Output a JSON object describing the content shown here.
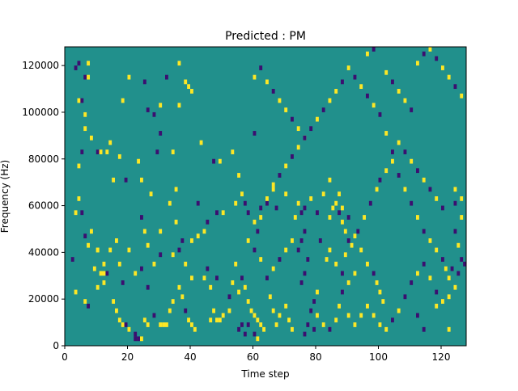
{
  "chart_data": {
    "type": "heatmap",
    "title": "Predicted : PM",
    "xlabel": "Time step",
    "ylabel": "Frequency (Hz)",
    "xlim": [
      0,
      128
    ],
    "ylim": [
      0,
      128000
    ],
    "x_ticks": [
      0,
      20,
      40,
      60,
      80,
      100,
      120
    ],
    "y_ticks": [
      0,
      20000,
      40000,
      60000,
      80000,
      100000,
      120000
    ],
    "grid": false,
    "value_levels": [
      -1,
      0,
      1
    ],
    "colors": {
      "low": "#3b0f70",
      "neutral": "#21908c",
      "high": "#fde725"
    },
    "cell_size": [
      1,
      2000
    ],
    "cells": [
      [
        3,
        118000,
        -1
      ],
      [
        4,
        120000,
        -1
      ],
      [
        7,
        120000,
        1
      ],
      [
        6,
        114000,
        -1
      ],
      [
        7,
        114000,
        1
      ],
      [
        4,
        104000,
        1
      ],
      [
        5,
        104000,
        -1
      ],
      [
        6,
        98000,
        1
      ],
      [
        6,
        92000,
        1
      ],
      [
        5,
        82000,
        -1
      ],
      [
        4,
        76000,
        1
      ],
      [
        8,
        88000,
        1
      ],
      [
        10,
        82000,
        -1
      ],
      [
        11,
        82000,
        1
      ],
      [
        13,
        82000,
        1
      ],
      [
        14,
        86000,
        1
      ],
      [
        17,
        80000,
        1
      ],
      [
        15,
        70000,
        1
      ],
      [
        19,
        70000,
        -1
      ],
      [
        24,
        70000,
        1
      ],
      [
        18,
        104000,
        1
      ],
      [
        20,
        114000,
        1
      ],
      [
        25,
        112000,
        -1
      ],
      [
        26,
        100000,
        -1
      ],
      [
        30,
        102000,
        1
      ],
      [
        32,
        114000,
        -1
      ],
      [
        36,
        120000,
        1
      ],
      [
        36,
        102000,
        1
      ],
      [
        38,
        112000,
        1
      ],
      [
        39,
        110000,
        1
      ],
      [
        40,
        108000,
        1
      ],
      [
        28,
        98000,
        -1
      ],
      [
        30,
        90000,
        -1
      ],
      [
        23,
        78000,
        1
      ],
      [
        29,
        82000,
        -1
      ],
      [
        34,
        82000,
        1
      ],
      [
        35,
        66000,
        1
      ],
      [
        33,
        60000,
        1
      ],
      [
        27,
        64000,
        1
      ],
      [
        42,
        60000,
        -1
      ],
      [
        43,
        86000,
        1
      ],
      [
        47,
        78000,
        -1
      ],
      [
        49,
        78000,
        1
      ],
      [
        53,
        82000,
        1
      ],
      [
        60,
        90000,
        -1
      ],
      [
        55,
        72000,
        1
      ],
      [
        56,
        64000,
        1
      ],
      [
        54,
        60000,
        1
      ],
      [
        50,
        56000,
        1
      ],
      [
        48,
        56000,
        -1
      ],
      [
        45,
        52000,
        -1
      ],
      [
        44,
        48000,
        1
      ],
      [
        42,
        46000,
        1
      ],
      [
        40,
        44000,
        1
      ],
      [
        37,
        44000,
        -1
      ],
      [
        35,
        52000,
        1
      ],
      [
        30,
        48000,
        1
      ],
      [
        24,
        54000,
        -1
      ],
      [
        25,
        48000,
        1
      ],
      [
        26,
        42000,
        1
      ],
      [
        20,
        40000,
        1
      ],
      [
        16,
        44000,
        1
      ],
      [
        14,
        40000,
        1
      ],
      [
        17,
        34000,
        1
      ],
      [
        13,
        30000,
        -1
      ],
      [
        11,
        30000,
        1
      ],
      [
        12,
        30000,
        1
      ],
      [
        9,
        32000,
        1
      ],
      [
        10,
        40000,
        1
      ],
      [
        8,
        48000,
        1
      ],
      [
        7,
        42000,
        1
      ],
      [
        6,
        46000,
        -1
      ],
      [
        5,
        56000,
        -1
      ],
      [
        3,
        56000,
        1
      ],
      [
        4,
        62000,
        1
      ],
      [
        2,
        36000,
        -1
      ],
      [
        3,
        22000,
        1
      ],
      [
        6,
        18000,
        1
      ],
      [
        7,
        16000,
        -1
      ],
      [
        10,
        24000,
        1
      ],
      [
        12,
        26000,
        1
      ],
      [
        15,
        18000,
        1
      ],
      [
        16,
        14000,
        1
      ],
      [
        17,
        10000,
        1
      ],
      [
        18,
        8000,
        1
      ],
      [
        19,
        8000,
        -1
      ],
      [
        20,
        6000,
        1
      ],
      [
        22,
        4000,
        -1
      ],
      [
        23,
        2000,
        -1
      ],
      [
        22,
        2000,
        -1
      ],
      [
        24,
        2000,
        1
      ],
      [
        26,
        8000,
        1
      ],
      [
        25,
        10000,
        1
      ],
      [
        28,
        12000,
        -1
      ],
      [
        30,
        8000,
        1
      ],
      [
        31,
        8000,
        1
      ],
      [
        32,
        8000,
        1
      ],
      [
        33,
        14000,
        1
      ],
      [
        34,
        18000,
        1
      ],
      [
        36,
        24000,
        1
      ],
      [
        37,
        20000,
        1
      ],
      [
        38,
        14000,
        -1
      ],
      [
        39,
        10000,
        1
      ],
      [
        40,
        8000,
        1
      ],
      [
        41,
        6000,
        1
      ],
      [
        40,
        28000,
        1
      ],
      [
        38,
        34000,
        1
      ],
      [
        36,
        40000,
        -1
      ],
      [
        34,
        38000,
        1
      ],
      [
        30,
        38000,
        -1
      ],
      [
        28,
        34000,
        1
      ],
      [
        24,
        32000,
        -1
      ],
      [
        22,
        30000,
        1
      ],
      [
        26,
        24000,
        -1
      ],
      [
        18,
        26000,
        -1
      ],
      [
        12,
        34000,
        1
      ],
      [
        10,
        40000,
        1
      ],
      [
        44,
        28000,
        1
      ],
      [
        45,
        32000,
        -1
      ],
      [
        46,
        24000,
        1
      ],
      [
        48,
        28000,
        -1
      ],
      [
        47,
        14000,
        1
      ],
      [
        46,
        10000,
        1
      ],
      [
        48,
        10000,
        1
      ],
      [
        49,
        10000,
        1
      ],
      [
        50,
        12000,
        1
      ],
      [
        52,
        14000,
        1
      ],
      [
        52,
        20000,
        -1
      ],
      [
        53,
        26000,
        1
      ],
      [
        55,
        22000,
        1
      ],
      [
        54,
        34000,
        1
      ],
      [
        56,
        28000,
        -1
      ],
      [
        57,
        24000,
        1
      ],
      [
        58,
        18000,
        1
      ],
      [
        59,
        14000,
        1
      ],
      [
        60,
        12000,
        1
      ],
      [
        61,
        10000,
        1
      ],
      [
        62,
        8000,
        1
      ],
      [
        63,
        6000,
        1
      ],
      [
        60,
        4000,
        -1
      ],
      [
        61,
        2000,
        1
      ],
      [
        58,
        8000,
        -1
      ],
      [
        56,
        8000,
        -1
      ],
      [
        55,
        6000,
        -1
      ],
      [
        57,
        4000,
        -1
      ],
      [
        65,
        20000,
        1
      ],
      [
        66,
        14000,
        1
      ],
      [
        67,
        8000,
        1
      ],
      [
        68,
        12000,
        1
      ],
      [
        70,
        16000,
        1
      ],
      [
        71,
        10000,
        1
      ],
      [
        72,
        6000,
        1
      ],
      [
        76,
        4000,
        -1
      ],
      [
        77,
        8000,
        -1
      ],
      [
        78,
        14000,
        -1
      ],
      [
        79,
        18000,
        -1
      ],
      [
        80,
        22000,
        1
      ],
      [
        75,
        26000,
        -1
      ],
      [
        76,
        30000,
        -1
      ],
      [
        77,
        36000,
        -1
      ],
      [
        74,
        40000,
        -1
      ],
      [
        75,
        44000,
        -1
      ],
      [
        76,
        48000,
        -1
      ],
      [
        75,
        56000,
        -1
      ],
      [
        74,
        60000,
        1
      ],
      [
        72,
        44000,
        1
      ],
      [
        70,
        40000,
        1
      ],
      [
        68,
        36000,
        -1
      ],
      [
        66,
        32000,
        1
      ],
      [
        64,
        28000,
        -1
      ],
      [
        62,
        36000,
        1
      ],
      [
        60,
        40000,
        -1
      ],
      [
        58,
        44000,
        1
      ],
      [
        61,
        48000,
        -1
      ],
      [
        60,
        52000,
        1
      ],
      [
        57,
        60000,
        -1
      ],
      [
        58,
        56000,
        -1
      ],
      [
        62,
        54000,
        1
      ],
      [
        64,
        60000,
        -1
      ],
      [
        66,
        66000,
        1
      ],
      [
        67,
        58000,
        -1
      ],
      [
        70,
        64000,
        1
      ],
      [
        73,
        54000,
        1
      ],
      [
        76,
        58000,
        -1
      ],
      [
        78,
        62000,
        1
      ],
      [
        80,
        56000,
        -1
      ],
      [
        82,
        64000,
        1
      ],
      [
        84,
        54000,
        1
      ],
      [
        85,
        58000,
        1
      ],
      [
        84,
        70000,
        1
      ],
      [
        87,
        64000,
        1
      ],
      [
        88,
        58000,
        1
      ],
      [
        90,
        54000,
        -1
      ],
      [
        92,
        46000,
        1
      ],
      [
        94,
        40000,
        1
      ],
      [
        96,
        34000,
        1
      ],
      [
        98,
        30000,
        -1
      ],
      [
        99,
        26000,
        1
      ],
      [
        100,
        22000,
        1
      ],
      [
        101,
        18000,
        1
      ],
      [
        92,
        30000,
        1
      ],
      [
        90,
        26000,
        1
      ],
      [
        88,
        22000,
        -1
      ],
      [
        87,
        16000,
        1
      ],
      [
        86,
        10000,
        1
      ],
      [
        84,
        6000,
        -1
      ],
      [
        82,
        8000,
        1
      ],
      [
        80,
        12000,
        1
      ],
      [
        79,
        6000,
        -1
      ],
      [
        83,
        36000,
        1
      ],
      [
        81,
        44000,
        -1
      ],
      [
        84,
        40000,
        1
      ],
      [
        86,
        34000,
        1
      ],
      [
        88,
        30000,
        -1
      ],
      [
        89,
        38000,
        1
      ],
      [
        91,
        42000,
        1
      ],
      [
        93,
        48000,
        -1
      ],
      [
        95,
        54000,
        1
      ],
      [
        97,
        60000,
        -1
      ],
      [
        99,
        66000,
        1
      ],
      [
        100,
        70000,
        -1
      ],
      [
        102,
        74000,
        1
      ],
      [
        104,
        78000,
        1
      ],
      [
        106,
        72000,
        -1
      ],
      [
        108,
        66000,
        1
      ],
      [
        110,
        60000,
        -1
      ],
      [
        112,
        54000,
        1
      ],
      [
        114,
        48000,
        -1
      ],
      [
        116,
        44000,
        1
      ],
      [
        118,
        40000,
        1
      ],
      [
        120,
        36000,
        -1
      ],
      [
        121,
        32000,
        1
      ],
      [
        122,
        28000,
        1
      ],
      [
        123,
        32000,
        -1
      ],
      [
        125,
        30000,
        -1
      ],
      [
        127,
        34000,
        -1
      ],
      [
        126,
        36000,
        -1
      ],
      [
        124,
        24000,
        1
      ],
      [
        122,
        20000,
        1
      ],
      [
        120,
        18000,
        1
      ],
      [
        118,
        22000,
        -1
      ],
      [
        116,
        28000,
        1
      ],
      [
        114,
        34000,
        -1
      ],
      [
        112,
        30000,
        1
      ],
      [
        110,
        26000,
        -1
      ],
      [
        108,
        20000,
        -1
      ],
      [
        106,
        14000,
        1
      ],
      [
        104,
        10000,
        -1
      ],
      [
        102,
        6000,
        1
      ],
      [
        100,
        8000,
        1
      ],
      [
        98,
        12000,
        1
      ],
      [
        96,
        16000,
        1
      ],
      [
        94,
        12000,
        1
      ],
      [
        92,
        8000,
        1
      ],
      [
        90,
        12000,
        1
      ],
      [
        112,
        12000,
        -1
      ],
      [
        114,
        6000,
        -1
      ],
      [
        118,
        16000,
        1
      ],
      [
        122,
        6000,
        1
      ],
      [
        125,
        42000,
        1
      ],
      [
        124,
        48000,
        -1
      ],
      [
        126,
        54000,
        1
      ],
      [
        124,
        60000,
        -1
      ],
      [
        126,
        62000,
        1
      ],
      [
        124,
        66000,
        1
      ],
      [
        120,
        58000,
        -1
      ],
      [
        118,
        62000,
        1
      ],
      [
        116,
        66000,
        -1
      ],
      [
        114,
        70000,
        1
      ],
      [
        112,
        74000,
        -1
      ],
      [
        110,
        78000,
        1
      ],
      [
        108,
        82000,
        -1
      ],
      [
        106,
        86000,
        1
      ],
      [
        104,
        82000,
        -1
      ],
      [
        102,
        90000,
        1
      ],
      [
        100,
        98000,
        -1
      ],
      [
        98,
        102000,
        1
      ],
      [
        96,
        106000,
        -1
      ],
      [
        94,
        110000,
        1
      ],
      [
        92,
        114000,
        -1
      ],
      [
        90,
        118000,
        1
      ],
      [
        88,
        112000,
        -1
      ],
      [
        86,
        108000,
        1
      ],
      [
        84,
        104000,
        1
      ],
      [
        82,
        100000,
        -1
      ],
      [
        80,
        96000,
        1
      ],
      [
        78,
        92000,
        -1
      ],
      [
        76,
        88000,
        1
      ],
      [
        74,
        84000,
        1
      ],
      [
        72,
        80000,
        -1
      ],
      [
        70,
        76000,
        1
      ],
      [
        68,
        72000,
        -1
      ],
      [
        66,
        68000,
        1
      ],
      [
        64,
        62000,
        1
      ],
      [
        62,
        58000,
        -1
      ],
      [
        60,
        114000,
        1
      ],
      [
        62,
        118000,
        -1
      ],
      [
        64,
        112000,
        1
      ],
      [
        66,
        108000,
        -1
      ],
      [
        68,
        104000,
        1
      ],
      [
        70,
        100000,
        1
      ],
      [
        72,
        96000,
        -1
      ],
      [
        74,
        92000,
        1
      ],
      [
        76,
        88000,
        -1
      ],
      [
        96,
        124000,
        1
      ],
      [
        98,
        126000,
        -1
      ],
      [
        100,
        128000,
        1
      ],
      [
        102,
        116000,
        1
      ],
      [
        104,
        112000,
        -1
      ],
      [
        106,
        108000,
        1
      ],
      [
        108,
        104000,
        1
      ],
      [
        110,
        100000,
        -1
      ],
      [
        112,
        120000,
        1
      ],
      [
        114,
        124000,
        -1
      ],
      [
        116,
        126000,
        1
      ],
      [
        118,
        122000,
        -1
      ],
      [
        120,
        118000,
        1
      ],
      [
        122,
        114000,
        1
      ],
      [
        124,
        110000,
        -1
      ],
      [
        126,
        106000,
        1
      ],
      [
        86,
        60000,
        1
      ],
      [
        87,
        56000,
        -1
      ],
      [
        88,
        52000,
        1
      ],
      [
        89,
        48000,
        1
      ],
      [
        90,
        44000,
        -1
      ]
    ]
  }
}
